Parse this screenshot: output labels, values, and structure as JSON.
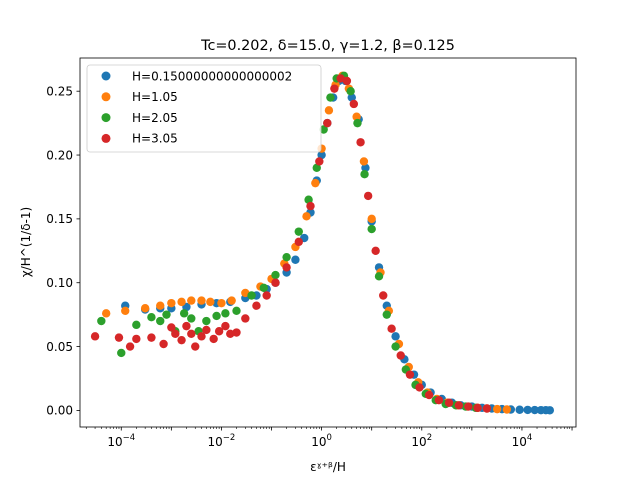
{
  "chart_data": {
    "type": "scatter",
    "title": "Tc=0.202, δ=15.0, γ=1.2, β=0.125",
    "xlabel": "εˠ⁺ᵝ/H",
    "ylabel": "χ/H^(1/δ-1)",
    "xscale": "log",
    "xlim": [
      1.5e-05,
      120000
    ],
    "ylim": [
      -0.013,
      0.276
    ],
    "xticks": [
      {
        "value": 0.0001,
        "base": "10",
        "exp": "−4"
      },
      {
        "value": 0.01,
        "base": "10",
        "exp": "−2"
      },
      {
        "value": 1,
        "base": "10",
        "exp": "0"
      },
      {
        "value": 100,
        "base": "10",
        "exp": "2"
      },
      {
        "value": 10000,
        "base": "10",
        "exp": "4"
      }
    ],
    "yticks": [
      {
        "value": 0.0,
        "label": "0.00"
      },
      {
        "value": 0.05,
        "label": "0.05"
      },
      {
        "value": 0.1,
        "label": "0.10"
      },
      {
        "value": 0.15,
        "label": "0.15"
      },
      {
        "value": 0.2,
        "label": "0.20"
      },
      {
        "value": 0.25,
        "label": "0.25"
      }
    ],
    "grid": false,
    "legend_position": "top-left",
    "series": [
      {
        "name": "H=0.15000000000000002",
        "color": "#1f77b4",
        "points": [
          [
            0.00012,
            0.082
          ],
          [
            0.0003,
            0.079
          ],
          [
            0.0006,
            0.08
          ],
          [
            0.001,
            0.08
          ],
          [
            0.002,
            0.081
          ],
          [
            0.004,
            0.083
          ],
          [
            0.008,
            0.084
          ],
          [
            0.015,
            0.085
          ],
          [
            0.03,
            0.088
          ],
          [
            0.05,
            0.09
          ],
          [
            0.08,
            0.095
          ],
          [
            0.12,
            0.1
          ],
          [
            0.2,
            0.108
          ],
          [
            0.3,
            0.118
          ],
          [
            0.45,
            0.135
          ],
          [
            0.6,
            0.155
          ],
          [
            0.8,
            0.18
          ],
          [
            1.0,
            0.2
          ],
          [
            1.3,
            0.225
          ],
          [
            1.7,
            0.245
          ],
          [
            2.2,
            0.258
          ],
          [
            3.0,
            0.258
          ],
          [
            4.0,
            0.245
          ],
          [
            5.5,
            0.228
          ],
          [
            7.5,
            0.19
          ],
          [
            10,
            0.148
          ],
          [
            14,
            0.112
          ],
          [
            20,
            0.082
          ],
          [
            30,
            0.058
          ],
          [
            45,
            0.04
          ],
          [
            70,
            0.028
          ],
          [
            100,
            0.02
          ],
          [
            150,
            0.014
          ],
          [
            250,
            0.009
          ],
          [
            400,
            0.006
          ],
          [
            600,
            0.004
          ],
          [
            1000,
            0.003
          ],
          [
            1600,
            0.002
          ],
          [
            2500,
            0.0015
          ],
          [
            4000,
            0.001
          ],
          [
            6000,
            0.0007
          ],
          [
            9000,
            0.0005
          ],
          [
            13000,
            0.0004
          ],
          [
            18000,
            0.0003
          ],
          [
            24000,
            0.0002
          ],
          [
            30000,
            0.0002
          ],
          [
            36000,
            0.0001
          ]
        ]
      },
      {
        "name": "H=1.05",
        "color": "#ff7f0e",
        "points": [
          [
            5e-05,
            0.076
          ],
          [
            0.00012,
            0.078
          ],
          [
            0.0003,
            0.08
          ],
          [
            0.0006,
            0.082
          ],
          [
            0.001,
            0.084
          ],
          [
            0.0016,
            0.085
          ],
          [
            0.0025,
            0.086
          ],
          [
            0.004,
            0.086
          ],
          [
            0.006,
            0.085
          ],
          [
            0.01,
            0.084
          ],
          [
            0.016,
            0.086
          ],
          [
            0.03,
            0.092
          ],
          [
            0.06,
            0.097
          ],
          [
            0.1,
            0.103
          ],
          [
            0.18,
            0.115
          ],
          [
            0.3,
            0.128
          ],
          [
            0.5,
            0.152
          ],
          [
            0.75,
            0.178
          ],
          [
            1.0,
            0.205
          ],
          [
            1.4,
            0.235
          ],
          [
            1.9,
            0.255
          ],
          [
            2.6,
            0.262
          ],
          [
            3.5,
            0.252
          ],
          [
            5.0,
            0.23
          ],
          [
            7.0,
            0.195
          ],
          [
            10,
            0.15
          ],
          [
            15,
            0.108
          ],
          [
            22,
            0.078
          ],
          [
            35,
            0.052
          ],
          [
            55,
            0.034
          ],
          [
            85,
            0.022
          ],
          [
            130,
            0.014
          ],
          [
            200,
            0.009
          ],
          [
            320,
            0.006
          ],
          [
            500,
            0.004
          ],
          [
            800,
            0.003
          ],
          [
            1300,
            0.002
          ],
          [
            2000,
            0.0015
          ],
          [
            3200,
            0.001
          ],
          [
            5000,
            0.0007
          ]
        ]
      },
      {
        "name": "H=2.05",
        "color": "#2ca02c",
        "points": [
          [
            4e-05,
            0.07
          ],
          [
            0.0001,
            0.045
          ],
          [
            0.0002,
            0.067
          ],
          [
            0.0004,
            0.073
          ],
          [
            0.0006,
            0.07
          ],
          [
            0.0008,
            0.075
          ],
          [
            0.0012,
            0.062
          ],
          [
            0.0018,
            0.076
          ],
          [
            0.0025,
            0.072
          ],
          [
            0.0035,
            0.062
          ],
          [
            0.005,
            0.07
          ],
          [
            0.008,
            0.074
          ],
          [
            0.012,
            0.076
          ],
          [
            0.02,
            0.078
          ],
          [
            0.04,
            0.09
          ],
          [
            0.07,
            0.096
          ],
          [
            0.12,
            0.106
          ],
          [
            0.2,
            0.12
          ],
          [
            0.35,
            0.14
          ],
          [
            0.55,
            0.165
          ],
          [
            0.8,
            0.19
          ],
          [
            1.1,
            0.22
          ],
          [
            1.5,
            0.245
          ],
          [
            2.0,
            0.26
          ],
          [
            2.8,
            0.262
          ],
          [
            3.8,
            0.25
          ],
          [
            5.2,
            0.225
          ],
          [
            7.2,
            0.185
          ],
          [
            10,
            0.142
          ],
          [
            14,
            0.105
          ],
          [
            20,
            0.075
          ],
          [
            30,
            0.05
          ],
          [
            48,
            0.032
          ],
          [
            75,
            0.02
          ],
          [
            120,
            0.013
          ],
          [
            190,
            0.008
          ],
          [
            300,
            0.005
          ],
          [
            480,
            0.004
          ],
          [
            750,
            0.003
          ],
          [
            1200,
            0.002
          ]
        ]
      },
      {
        "name": "H=3.05",
        "color": "#d62728",
        "points": [
          [
            3e-05,
            0.058
          ],
          [
            9e-05,
            0.057
          ],
          [
            0.00015,
            0.05
          ],
          [
            0.0002,
            0.056
          ],
          [
            0.0004,
            0.057
          ],
          [
            0.0007,
            0.052
          ],
          [
            0.001,
            0.065
          ],
          [
            0.0012,
            0.06
          ],
          [
            0.0016,
            0.055
          ],
          [
            0.002,
            0.066
          ],
          [
            0.0025,
            0.06
          ],
          [
            0.003,
            0.05
          ],
          [
            0.004,
            0.058
          ],
          [
            0.005,
            0.063
          ],
          [
            0.007,
            0.056
          ],
          [
            0.009,
            0.062
          ],
          [
            0.012,
            0.066
          ],
          [
            0.015,
            0.06
          ],
          [
            0.02,
            0.061
          ],
          [
            0.03,
            0.072
          ],
          [
            0.05,
            0.082
          ],
          [
            0.08,
            0.09
          ],
          [
            0.12,
            0.1
          ],
          [
            0.2,
            0.112
          ],
          [
            0.35,
            0.132
          ],
          [
            0.6,
            0.16
          ],
          [
            0.9,
            0.195
          ],
          [
            1.3,
            0.225
          ],
          [
            1.8,
            0.252
          ],
          [
            2.4,
            0.26
          ],
          [
            3.2,
            0.258
          ],
          [
            4.4,
            0.24
          ],
          [
            6.0,
            0.21
          ],
          [
            8.5,
            0.168
          ],
          [
            12,
            0.125
          ],
          [
            17,
            0.09
          ],
          [
            25,
            0.064
          ],
          [
            38,
            0.043
          ],
          [
            58,
            0.028
          ],
          [
            90,
            0.018
          ],
          [
            140,
            0.012
          ],
          [
            220,
            0.008
          ],
          [
            350,
            0.006
          ],
          [
            550,
            0.004
          ],
          [
            850,
            0.003
          ],
          [
            1300,
            0.002
          ],
          [
            2000,
            0.0015
          ]
        ]
      }
    ]
  }
}
